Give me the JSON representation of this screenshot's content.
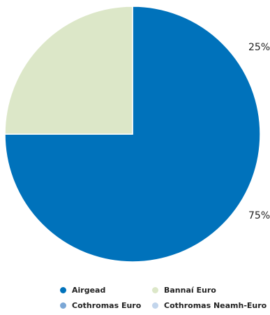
{
  "chart_data": {
    "type": "pie",
    "slices": [
      {
        "label": "Airgead",
        "value": 75,
        "display": "75%",
        "color": "#0072bb"
      },
      {
        "label": "Bannaí Euro",
        "value": 25,
        "display": "25%",
        "color": "#dce7c8"
      },
      {
        "label": "Cothromas Euro",
        "value": 0,
        "display": "",
        "color": "#7ba7d6"
      },
      {
        "label": "Cothromas Neamh-Euro",
        "value": 0,
        "display": "",
        "color": "#c2d5ec"
      }
    ],
    "start_angle_deg": 0,
    "direction": "clockwise",
    "legend_position": "bottom"
  },
  "legend": {
    "items": [
      {
        "label": "Airgead",
        "color": "#0072bb"
      },
      {
        "label": "Bannaí Euro",
        "color": "#dce7c8"
      },
      {
        "label": "Cothromas Euro",
        "color": "#7ba7d6"
      },
      {
        "label": "Cothromas Neamh-Euro",
        "color": "#c2d5ec"
      }
    ]
  },
  "labels": {
    "slice_0": "75%",
    "slice_1": "25%"
  }
}
